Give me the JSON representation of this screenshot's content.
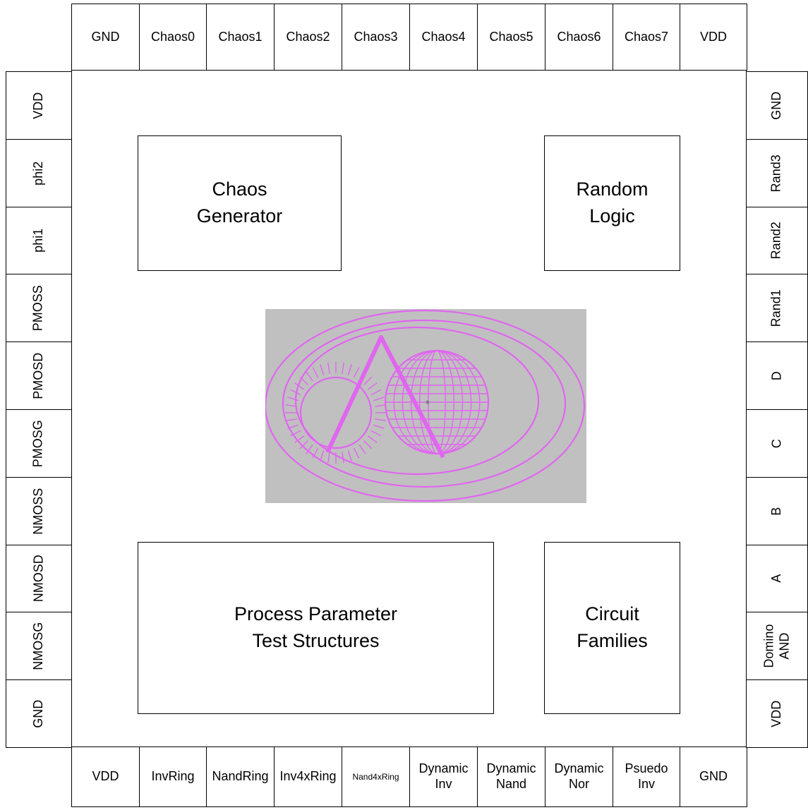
{
  "top_pads": [
    "GND",
    "Chaos0",
    "Chaos1",
    "Chaos2",
    "Chaos3",
    "Chaos4",
    "Chaos5",
    "Chaos6",
    "Chaos7",
    "VDD"
  ],
  "bottom_pads": [
    "VDD",
    "InvRing",
    "NandRing",
    "Inv4xRing",
    "Nand4xRing",
    "Dynamic\nInv",
    "Dynamic\nNand",
    "Dynamic\nNor",
    "Psuedo\nInv",
    "GND"
  ],
  "left_pads": [
    "VDD",
    "phi2",
    "phi1",
    "PMOSS",
    "PMOSD",
    "PMOSG",
    "NMOSS",
    "NMOSD",
    "NMOSG",
    "GND"
  ],
  "right_pads": [
    "GND",
    "Rand3",
    "Rand2",
    "Rand1",
    "D",
    "C",
    "B",
    "A",
    "Domino\nAND",
    "VDD"
  ],
  "blocks": {
    "chaos_generator": "Chaos\nGenerator",
    "random_logic": "Random\nLogic",
    "process_parameter": "Process Parameter\nTest Structures",
    "circuit_families": "Circuit\nFamilies"
  },
  "colors": {
    "logo_stroke": "#e066f0",
    "logo_bg": "#c0c0c0"
  },
  "logo_icon": "sun-globe-orbit-logo-icon"
}
